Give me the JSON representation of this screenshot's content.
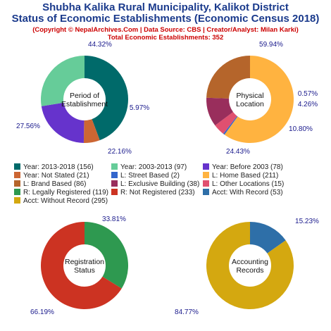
{
  "header": {
    "title_line1": "Shubha Kalika Rural Municipality, Kalikot District",
    "title_line2": "Status of Economic Establishments (Economic Census 2018)",
    "copyright": "(Copyright © NepalArchives.Com | Data Source: CBS | Creator/Analyst: Milan Karki)",
    "total": "Total Economic Establishments: 352"
  },
  "legend": [
    {
      "label": "Year: 2013-2018 (156)",
      "color": "#006a6a"
    },
    {
      "label": "Year: 2003-2013 (97)",
      "color": "#66cc99"
    },
    {
      "label": "Year: Before 2003 (78)",
      "color": "#6633cc"
    },
    {
      "label": "Year: Not Stated (21)",
      "color": "#cc6633"
    },
    {
      "label": "L: Street Based (2)",
      "color": "#3366cc"
    },
    {
      "label": "L: Home Based (211)",
      "color": "#ffb340"
    },
    {
      "label": "L: Brand Based (86)",
      "color": "#b5652b"
    },
    {
      "label": "L: Exclusive Building (38)",
      "color": "#992e5c"
    },
    {
      "label": "L: Other Locations (15)",
      "color": "#e05070"
    },
    {
      "label": "R: Legally Registered (119)",
      "color": "#2e9950"
    },
    {
      "label": "R: Not Registered (233)",
      "color": "#cc3322"
    },
    {
      "label": "Acct: With Record (53)",
      "color": "#2e6fa8"
    },
    {
      "label": "Acct: Without Record (295)",
      "color": "#d4a810"
    }
  ],
  "chart_data": [
    {
      "type": "pie",
      "center_label": [
        "Period of",
        "Establishment"
      ],
      "slices": [
        {
          "name": "Year: 2013-2018",
          "value": 156,
          "label": "44.32%",
          "color": "#006a6a"
        },
        {
          "name": "Year: Not Stated",
          "value": 21,
          "label": "5.97%",
          "color": "#cc6633"
        },
        {
          "name": "Year: Before 2003",
          "value": 78,
          "label": "22.16%",
          "color": "#6633cc"
        },
        {
          "name": "Year: 2003-2013",
          "value": 97,
          "label": "27.56%",
          "color": "#66cc99"
        }
      ]
    },
    {
      "type": "pie",
      "center_label": [
        "Physical",
        "Location"
      ],
      "slices": [
        {
          "name": "L: Home Based",
          "value": 211,
          "label": "59.94%",
          "color": "#ffb340"
        },
        {
          "name": "L: Street Based",
          "value": 2,
          "label": "0.57%",
          "color": "#3366cc"
        },
        {
          "name": "L: Other Locations",
          "value": 15,
          "label": "4.26%",
          "color": "#e05070"
        },
        {
          "name": "L: Exclusive Building",
          "value": 38,
          "label": "10.80%",
          "color": "#992e5c"
        },
        {
          "name": "L: Brand Based",
          "value": 86,
          "label": "24.43%",
          "color": "#b5652b"
        }
      ]
    },
    {
      "type": "pie",
      "center_label": [
        "Registration",
        "Status"
      ],
      "slices": [
        {
          "name": "R: Legally Registered",
          "value": 119,
          "label": "33.81%",
          "color": "#2e9950"
        },
        {
          "name": "R: Not Registered",
          "value": 233,
          "label": "66.19%",
          "color": "#cc3322"
        }
      ]
    },
    {
      "type": "pie",
      "center_label": [
        "Accounting",
        "Records"
      ],
      "slices": [
        {
          "name": "Acct: With Record",
          "value": 53,
          "label": "15.23%",
          "color": "#2e6fa8"
        },
        {
          "name": "Acct: Without Record",
          "value": 295,
          "label": "84.77%",
          "color": "#d4a810"
        }
      ]
    }
  ]
}
